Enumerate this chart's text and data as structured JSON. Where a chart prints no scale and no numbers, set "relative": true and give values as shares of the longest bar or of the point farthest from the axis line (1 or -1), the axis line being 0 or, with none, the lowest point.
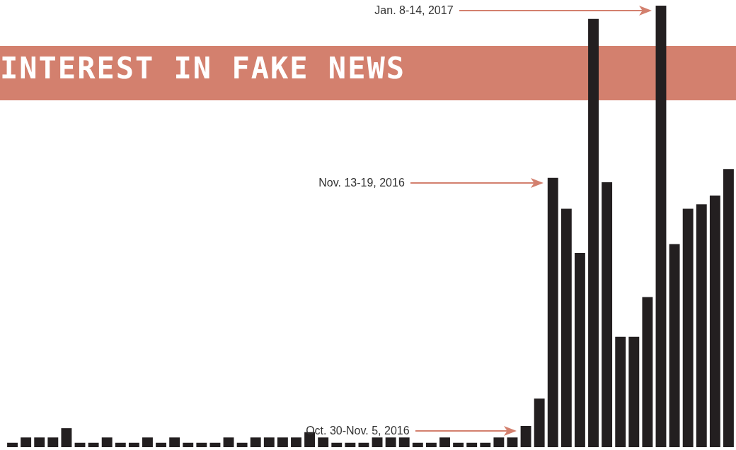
{
  "chart_data": {
    "type": "bar",
    "title": "INTEREST IN FAKE NEWS",
    "relative": true,
    "color": "#231f20",
    "categories": [
      null,
      null,
      null,
      null,
      null,
      null,
      null,
      null,
      null,
      null,
      null,
      null,
      null,
      null,
      null,
      null,
      null,
      null,
      null,
      null,
      null,
      null,
      null,
      null,
      null,
      null,
      null,
      null,
      null,
      null,
      null,
      null,
      null,
      null,
      null,
      null,
      null,
      null,
      null,
      null,
      null,
      null,
      null,
      null,
      null,
      null,
      null,
      null,
      null,
      null,
      null,
      null,
      null,
      null
    ],
    "values": [
      0.01,
      0.022,
      0.022,
      0.022,
      0.043,
      0.01,
      0.01,
      0.022,
      0.01,
      0.01,
      0.022,
      0.01,
      0.022,
      0.01,
      0.01,
      0.01,
      0.022,
      0.01,
      0.022,
      0.022,
      0.022,
      0.022,
      0.034,
      0.022,
      0.01,
      0.01,
      0.01,
      0.022,
      0.022,
      0.022,
      0.01,
      0.01,
      0.022,
      0.01,
      0.01,
      0.01,
      0.022,
      0.022,
      0.048,
      0.11,
      0.61,
      0.54,
      0.44,
      0.97,
      0.6,
      0.25,
      0.25,
      0.34,
      1,
      0.46,
      0.54,
      0.55,
      0.57,
      0.63
    ],
    "annotations": [
      "Jan. 8-14, 2017",
      "Nov. 13-19, 2016",
      "Oct. 30-Nov. 5, 2016"
    ],
    "legend": false
  }
}
